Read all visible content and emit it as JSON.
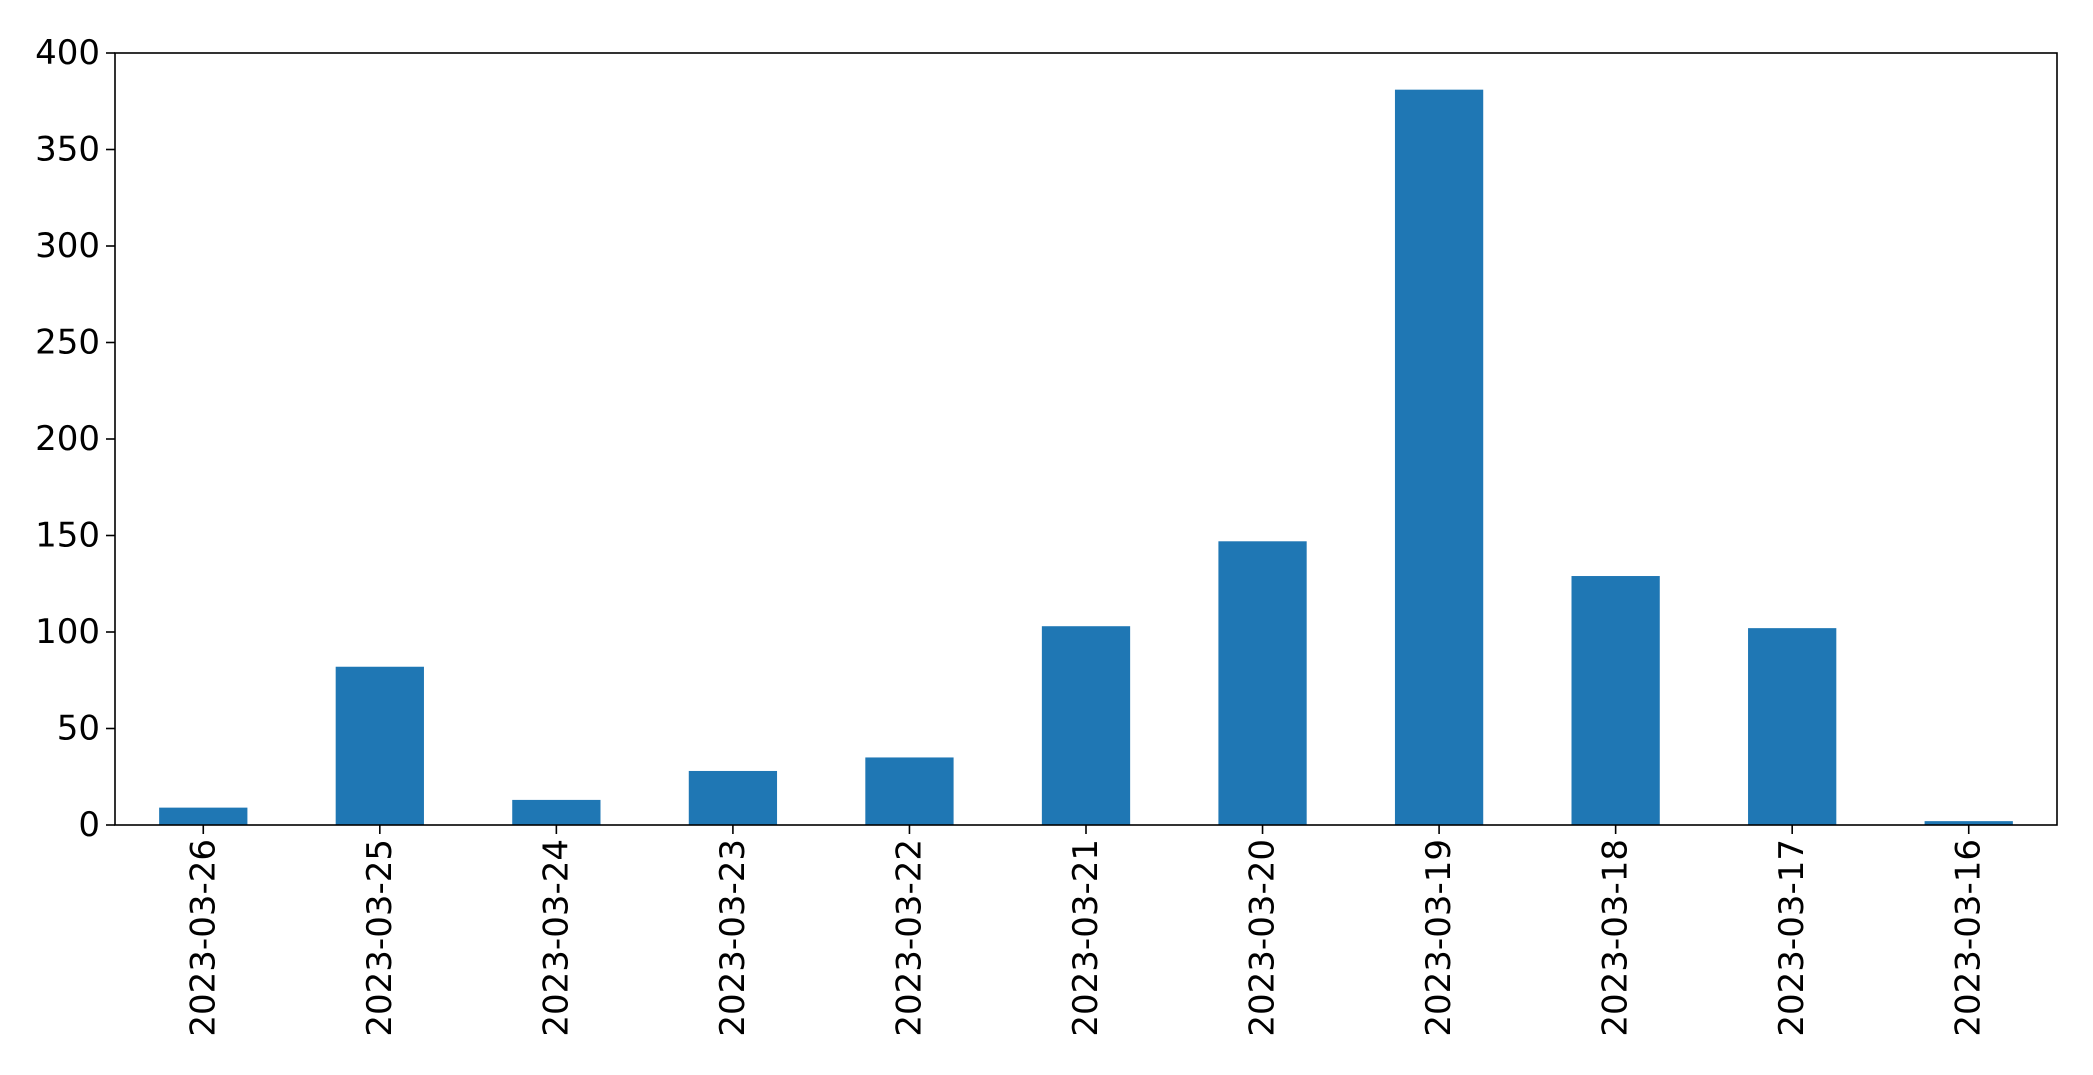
{
  "chart_data": {
    "type": "bar",
    "title": "",
    "xlabel": "",
    "ylabel": "",
    "categories": [
      "2023-03-26",
      "2023-03-25",
      "2023-03-24",
      "2023-03-23",
      "2023-03-22",
      "2023-03-21",
      "2023-03-20",
      "2023-03-19",
      "2023-03-18",
      "2023-03-17",
      "2023-03-16"
    ],
    "values": [
      9,
      82,
      13,
      28,
      35,
      103,
      147,
      381,
      129,
      102,
      2
    ],
    "ylim": [
      0,
      400
    ],
    "yticks": [
      "0",
      "50",
      "100",
      "150",
      "200",
      "250",
      "300",
      "350",
      "400"
    ],
    "grid": false,
    "legend": "none",
    "bar_color": "#1f77b4",
    "x_tick_rotation": "vertical"
  }
}
